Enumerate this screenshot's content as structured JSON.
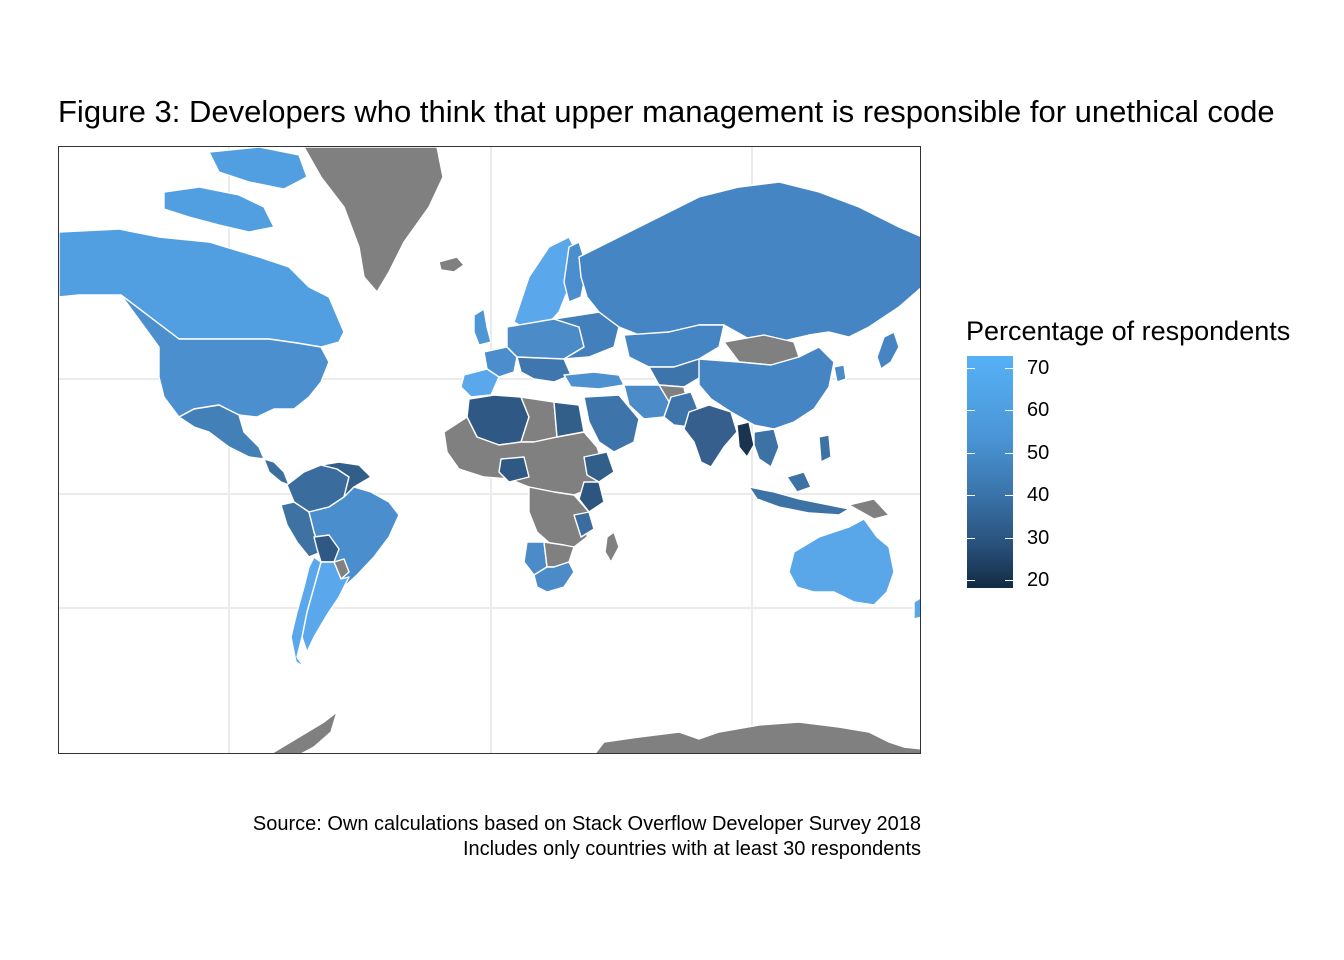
{
  "title": "Figure 3: Developers who think that upper management is responsible for unethical code",
  "legend": {
    "title": "Percentage of respondents",
    "ticks": [
      "70",
      "60",
      "50",
      "40",
      "30",
      "20"
    ],
    "scale": {
      "min_value": 20,
      "max_value": 72,
      "low_color": "#132B43",
      "high_color": "#56B1F7"
    }
  },
  "no_data_color": "#808080",
  "caption": {
    "line1": "Source: Own calculations based on Stack Overflow Developer Survey 2018",
    "line2": "Includes only countries with at least 30 respondents"
  },
  "chart_data": {
    "type": "choropleth",
    "projection": "mercator",
    "variable": "Percentage of respondents",
    "approximate_values_by_region": {
      "Canada": 60,
      "United States": 57,
      "Mexico": 50,
      "Colombia": 42,
      "Venezuela": 40,
      "Peru": 45,
      "Brazil": 55,
      "Bolivia": 38,
      "Argentina": 66,
      "Chile": 62,
      "Spain": 68,
      "France": 55,
      "United Kingdom": 58,
      "Sweden": 68,
      "Norway": 70,
      "Germany": 55,
      "Russia": 52,
      "Turkey": 58,
      "Egypt": 40,
      "Algeria": 38,
      "Nigeria": 40,
      "Kenya": 40,
      "South Africa": 50,
      "Namibia": 52,
      "Saudi Arabia": 45,
      "Iran": 50,
      "Kazakhstan": 52,
      "Pakistan": 45,
      "India": 40,
      "China": 52,
      "Bangladesh": 35,
      "Myanmar": 22,
      "Malaysia": 45,
      "Indonesia": 45,
      "Australia": 64,
      "New Zealand": 62
    },
    "no_data_regions": [
      "Greenland",
      "Antarctica",
      "Mongolia",
      "most of central Africa",
      "Afghanistan"
    ]
  }
}
